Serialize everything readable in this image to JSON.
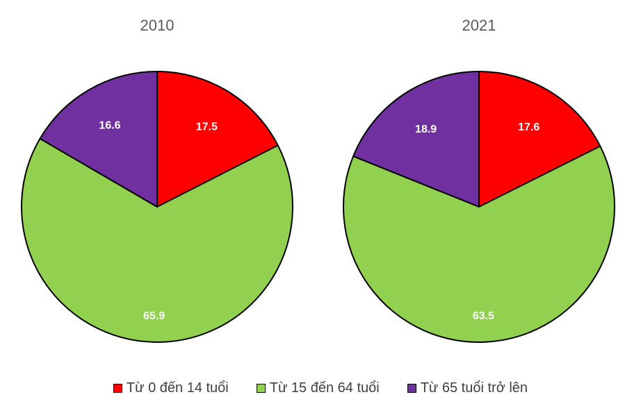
{
  "chart_data": [
    {
      "type": "pie",
      "title": "2010",
      "categories": [
        "Từ 0 đến 14 tuổi",
        "Từ 15 đến 64 tuổi",
        "Từ 65 tuổi trở lên"
      ],
      "values": [
        17.5,
        65.9,
        16.6
      ],
      "colors": [
        "#ff0000",
        "#92d050",
        "#7030a0"
      ]
    },
    {
      "type": "pie",
      "title": "2021",
      "categories": [
        "Từ 0 đến 14 tuổi",
        "Từ 15 đến 64 tuổi",
        "Từ 65 tuổi trở lên"
      ],
      "values": [
        17.6,
        63.5,
        18.9
      ],
      "colors": [
        "#ff0000",
        "#92d050",
        "#7030a0"
      ]
    }
  ],
  "legend": [
    {
      "label": "Từ 0 đến 14 tuổi",
      "color": "#ff0000"
    },
    {
      "label": "Từ 15 đến 64 tuổi",
      "color": "#92d050"
    },
    {
      "label": "Từ 65 tuổi trở lên",
      "color": "#7030a0"
    }
  ]
}
